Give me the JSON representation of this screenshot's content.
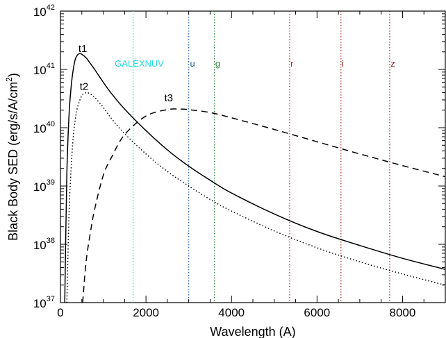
{
  "chart_data": {
    "type": "line",
    "title": "",
    "xlabel": "Wavelength (A)",
    "ylabel_parts": {
      "prefix": "Black Body SED (erg/s/A/cm",
      "exp": "2",
      "suffix": ")"
    },
    "xlim": [
      0,
      9000
    ],
    "ylim": [
      1e+37,
      1e+42
    ],
    "yscale": "log",
    "grid": false,
    "x_ticks": [
      0,
      2000,
      4000,
      6000,
      8000
    ],
    "x_tick_labels": [
      "0",
      "2000",
      "4000",
      "6000",
      "8000"
    ],
    "y_ticks": [
      37,
      38,
      39,
      40,
      41,
      42
    ],
    "y_tick_labels": [
      {
        "base": "10",
        "exp": "37"
      },
      {
        "base": "10",
        "exp": "38"
      },
      {
        "base": "10",
        "exp": "39"
      },
      {
        "base": "10",
        "exp": "40"
      },
      {
        "base": "10",
        "exp": "41"
      },
      {
        "base": "10",
        "exp": "42"
      }
    ],
    "series": [
      {
        "name": "t1",
        "line_style": "solid",
        "x": [
          100,
          150,
          200,
          250,
          300,
          350,
          400,
          450,
          500,
          600,
          700,
          800,
          1000,
          1200,
          1500,
          2000,
          2500,
          3000,
          3500,
          4000,
          5000,
          6000,
          7000,
          8000,
          9000
        ],
        "log_y": [
          37.0,
          39.2,
          40.2,
          40.7,
          41.0,
          41.18,
          41.25,
          41.27,
          41.26,
          41.2,
          41.1,
          41.0,
          40.78,
          40.58,
          40.32,
          39.95,
          39.62,
          39.34,
          39.1,
          38.88,
          38.52,
          38.22,
          37.98,
          37.76,
          37.57
        ],
        "label_x": 420,
        "label_log_y": 41.3
      },
      {
        "name": "t2",
        "line_style": "dotted",
        "x": [
          150,
          200,
          250,
          300,
          350,
          400,
          500,
          600,
          700,
          800,
          1000,
          1200,
          1500,
          2000,
          2500,
          3000,
          3500,
          4000,
          5000,
          6000,
          7000,
          8000,
          9000
        ],
        "log_y": [
          37.0,
          38.5,
          39.3,
          39.85,
          40.15,
          40.35,
          40.55,
          40.6,
          40.58,
          40.52,
          40.35,
          40.15,
          39.9,
          39.55,
          39.25,
          39.0,
          38.77,
          38.57,
          38.23,
          37.94,
          37.7,
          37.49,
          37.3
        ],
        "label_x": 450,
        "label_log_y": 40.65
      },
      {
        "name": "t3",
        "line_style": "dashed",
        "x": [
          520,
          600,
          700,
          800,
          1000,
          1200,
          1500,
          2000,
          2500,
          2800,
          3000,
          3500,
          4000,
          5000,
          6000,
          7000,
          8000,
          9000
        ],
        "log_y": [
          37.0,
          37.7,
          38.2,
          38.6,
          39.18,
          39.5,
          39.88,
          40.2,
          40.31,
          40.32,
          40.31,
          40.26,
          40.17,
          39.97,
          39.76,
          39.55,
          39.35,
          39.16
        ],
        "label_x": 2430,
        "label_log_y": 40.45
      }
    ],
    "vlines": [
      {
        "name": "GALEXNUV",
        "x": 1700,
        "color": "#22dde0",
        "label_x": 1270
      },
      {
        "name": "u",
        "x": 3000,
        "color": "#1f5fb4",
        "label_x": 3030
      },
      {
        "name": "g",
        "x": 3600,
        "color": "#2e8b3a",
        "label_x": 3620
      },
      {
        "name": "r",
        "x": 5360,
        "color": "#e02020",
        "label_x": 5380
      },
      {
        "name": "i",
        "x": 6560,
        "color": "#b02020",
        "label_x": 6575
      },
      {
        "name": "z",
        "x": 7700,
        "color": "#8b2030",
        "label_x": 7720
      }
    ],
    "vline_label_log_y": 41.05
  }
}
